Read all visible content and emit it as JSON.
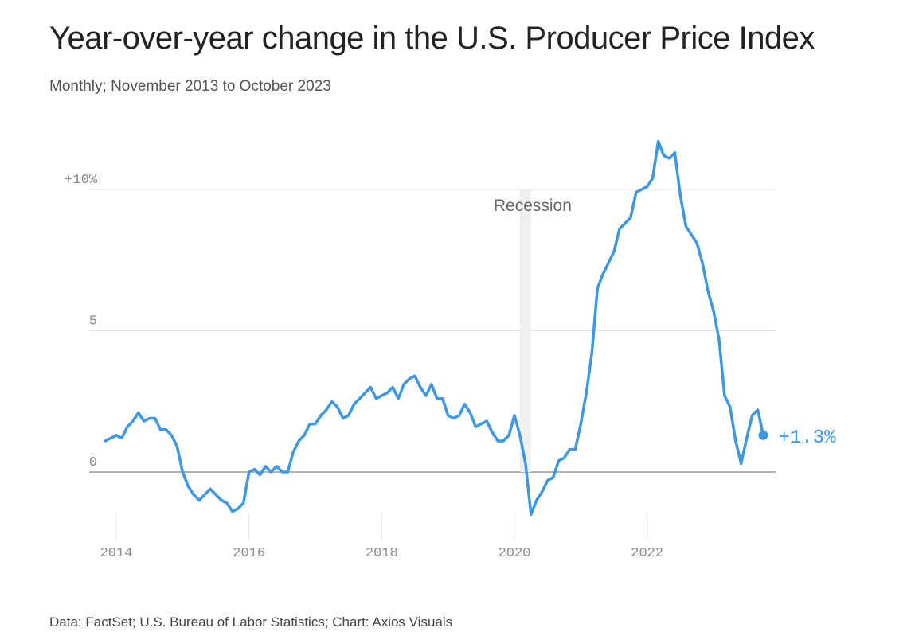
{
  "title": "Year-over-year change in the U.S. Producer Price Index",
  "subtitle": "Monthly; November 2013 to October 2023",
  "source": "Data: FactSet; U.S. Bureau of Labor Statistics; Chart: Axios Visuals",
  "colors": {
    "line": "#3d97e3",
    "grid": "#e4e4e4",
    "zero": "#9a9a9a",
    "recession": "#efefef"
  },
  "chart_data": {
    "type": "line",
    "title": "Year-over-year change in the U.S. Producer Price Index",
    "xlabel": "",
    "ylabel": "",
    "ylim": [
      -1.6,
      12
    ],
    "y_ticks": [
      {
        "value": 10,
        "label": "+10%"
      },
      {
        "value": 5,
        "label": "5"
      },
      {
        "value": 0,
        "label": "0"
      }
    ],
    "x_ticks": [
      {
        "value": "2014-01",
        "label": "2014"
      },
      {
        "value": "2016-01",
        "label": "2016"
      },
      {
        "value": "2018-01",
        "label": "2018"
      },
      {
        "value": "2020-01",
        "label": "2020"
      },
      {
        "value": "2022-01",
        "label": "2022"
      }
    ],
    "grid": true,
    "recession": {
      "label": "Recession",
      "start": "2020-02",
      "end": "2020-04"
    },
    "end_label": "+1.3%",
    "x": [
      "2013-11",
      "2013-12",
      "2014-01",
      "2014-02",
      "2014-03",
      "2014-04",
      "2014-05",
      "2014-06",
      "2014-07",
      "2014-08",
      "2014-09",
      "2014-10",
      "2014-11",
      "2014-12",
      "2015-01",
      "2015-02",
      "2015-03",
      "2015-04",
      "2015-05",
      "2015-06",
      "2015-07",
      "2015-08",
      "2015-09",
      "2015-10",
      "2015-11",
      "2015-12",
      "2016-01",
      "2016-02",
      "2016-03",
      "2016-04",
      "2016-05",
      "2016-06",
      "2016-07",
      "2016-08",
      "2016-09",
      "2016-10",
      "2016-11",
      "2016-12",
      "2017-01",
      "2017-02",
      "2017-03",
      "2017-04",
      "2017-05",
      "2017-06",
      "2017-07",
      "2017-08",
      "2017-09",
      "2017-10",
      "2017-11",
      "2017-12",
      "2018-01",
      "2018-02",
      "2018-03",
      "2018-04",
      "2018-05",
      "2018-06",
      "2018-07",
      "2018-08",
      "2018-09",
      "2018-10",
      "2018-11",
      "2018-12",
      "2019-01",
      "2019-02",
      "2019-03",
      "2019-04",
      "2019-05",
      "2019-06",
      "2019-07",
      "2019-08",
      "2019-09",
      "2019-10",
      "2019-11",
      "2019-12",
      "2020-01",
      "2020-02",
      "2020-03",
      "2020-04",
      "2020-05",
      "2020-06",
      "2020-07",
      "2020-08",
      "2020-09",
      "2020-10",
      "2020-11",
      "2020-12",
      "2021-01",
      "2021-02",
      "2021-03",
      "2021-04",
      "2021-05",
      "2021-06",
      "2021-07",
      "2021-08",
      "2021-09",
      "2021-10",
      "2021-11",
      "2021-12",
      "2022-01",
      "2022-02",
      "2022-03",
      "2022-04",
      "2022-05",
      "2022-06",
      "2022-07",
      "2022-08",
      "2022-09",
      "2022-10",
      "2022-11",
      "2022-12",
      "2023-01",
      "2023-02",
      "2023-03",
      "2023-04",
      "2023-05",
      "2023-06",
      "2023-07",
      "2023-08",
      "2023-09",
      "2023-10"
    ],
    "series": [
      {
        "values": [
          1.1,
          1.2,
          1.3,
          1.2,
          1.6,
          1.8,
          2.1,
          1.8,
          1.9,
          1.9,
          1.5,
          1.5,
          1.3,
          0.9,
          0.0,
          -0.5,
          -0.8,
          -1.0,
          -0.8,
          -0.6,
          -0.8,
          -1.0,
          -1.1,
          -1.4,
          -1.3,
          -1.1,
          0.0,
          0.1,
          -0.1,
          0.2,
          0.0,
          0.2,
          0.0,
          0.0,
          0.7,
          1.1,
          1.3,
          1.7,
          1.7,
          2.0,
          2.2,
          2.5,
          2.3,
          1.9,
          2.0,
          2.4,
          2.6,
          2.8,
          3.0,
          2.6,
          2.7,
          2.8,
          3.0,
          2.6,
          3.1,
          3.3,
          3.4,
          3.0,
          2.7,
          3.1,
          2.6,
          2.6,
          2.0,
          1.9,
          2.0,
          2.4,
          2.1,
          1.6,
          1.7,
          1.8,
          1.4,
          1.1,
          1.1,
          1.3,
          2.0,
          1.3,
          0.3,
          -1.5,
          -1.0,
          -0.7,
          -0.3,
          -0.2,
          0.4,
          0.5,
          0.8,
          0.8,
          1.7,
          2.8,
          4.2,
          6.5,
          7.0,
          7.4,
          7.8,
          8.6,
          8.8,
          9.0,
          9.9,
          10.0,
          10.1,
          10.4,
          11.7,
          11.2,
          11.1,
          11.3,
          9.8,
          8.7,
          8.4,
          8.1,
          7.4,
          6.4,
          5.7,
          4.7,
          2.7,
          2.3,
          1.1,
          0.3,
          1.2,
          2.0,
          2.2,
          1.3
        ]
      }
    ]
  }
}
